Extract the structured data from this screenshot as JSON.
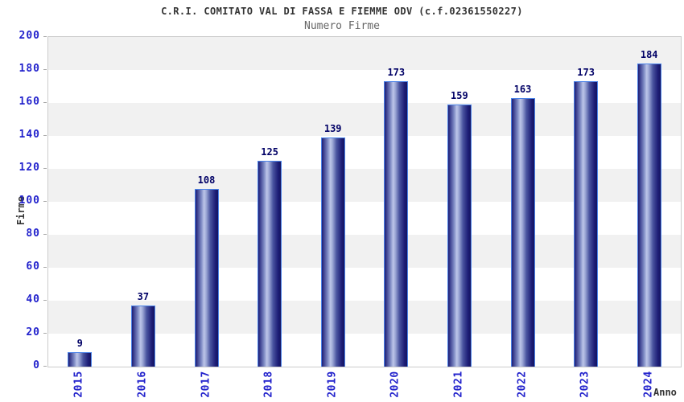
{
  "chart_data": {
    "type": "bar",
    "title": "C.R.I. COMITATO VAL DI FASSA E FIEMME ODV (c.f.02361550227)",
    "subtitle": "Numero Firme",
    "xlabel": "Anno",
    "ylabel": "Firme",
    "categories": [
      "2015",
      "2016",
      "2017",
      "2018",
      "2019",
      "2020",
      "2021",
      "2022",
      "2023",
      "2024"
    ],
    "values": [
      9,
      37,
      108,
      125,
      139,
      173,
      159,
      163,
      173,
      184
    ],
    "ylim": [
      0,
      200
    ],
    "ytick_step": 20,
    "grid": "alternating-horizontal-bands",
    "legend": "none",
    "value_labels_shown": true
  },
  "colors": {
    "background": "#ffffff",
    "title_text": "#333333",
    "subtitle_text": "#666666",
    "axis_tick_text": "#2222cc",
    "axis_title_text": "#333333",
    "value_label_text": "#000066",
    "plot_border": "#cccccc",
    "grid_line": "#dcdcdc",
    "band_fill": "#f1f1f1",
    "tick_mark": "#aaaaaa",
    "bar_border": "#4b83e8",
    "bar_dark": "#1d1d76",
    "bar_darker": "#151560",
    "bar_mid": "#7b87c2",
    "bar_highlight": "#bdc6e9"
  }
}
